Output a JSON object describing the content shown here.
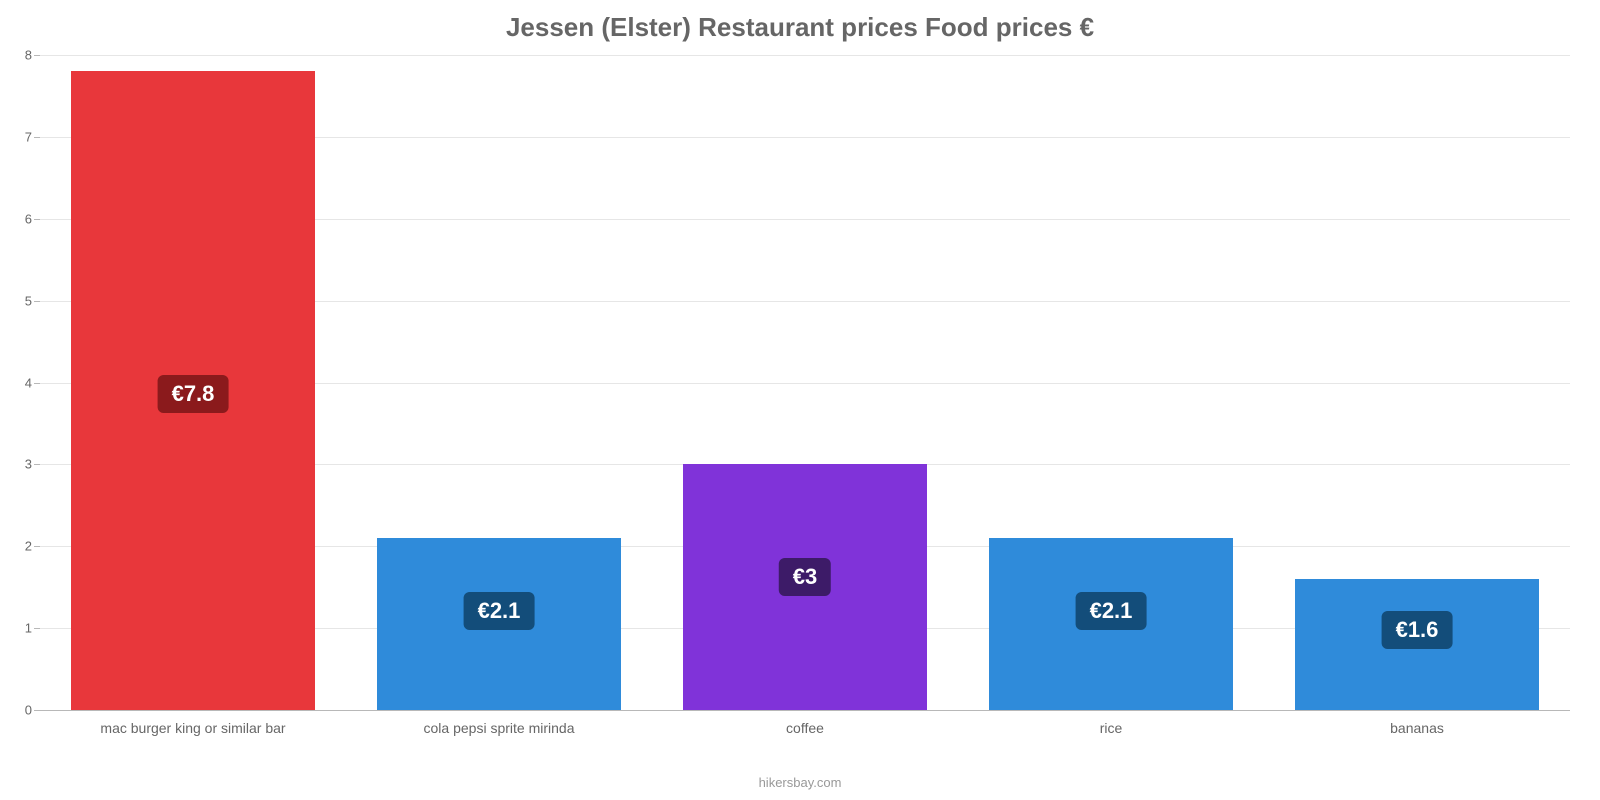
{
  "chart": {
    "type": "bar",
    "title": "Jessen (Elster) Restaurant prices Food prices €",
    "title_fontsize": 26,
    "title_color": "#666666",
    "attribution": "hikersbay.com",
    "attribution_fontsize": 13,
    "attribution_color": "#999999",
    "background_color": "#ffffff",
    "grid_color": "#e6e6e6",
    "axis_color": "#b8b8b8",
    "tick_font_color": "#666666",
    "tick_fontsize": 13,
    "xlabel_fontsize": 14,
    "xlabel_color": "#666666",
    "ylim": [
      0,
      8
    ],
    "ytick_step": 1,
    "yticks": [
      0,
      1,
      2,
      3,
      4,
      5,
      6,
      7,
      8
    ],
    "bar_width_pct": 16,
    "bar_gap_pct": 4,
    "categories": [
      "mac burger king or similar bar",
      "cola pepsi sprite mirinda",
      "coffee",
      "rice",
      "bananas"
    ],
    "values": [
      7.8,
      2.1,
      3,
      2.1,
      1.6
    ],
    "value_labels": [
      "€7.8",
      "€2.1",
      "€3",
      "€2.1",
      "€1.6"
    ],
    "bar_colors": [
      "#e8373b",
      "#2f8bda",
      "#8033d9",
      "#2f8bda",
      "#2f8bda"
    ],
    "badge_colors": [
      "#8b1a1c",
      "#134d7a",
      "#3d1b68",
      "#134d7a",
      "#134d7a"
    ],
    "value_fontsize": 22,
    "value_badge_radius": 6,
    "badge_offset_ratio": 0.465
  }
}
